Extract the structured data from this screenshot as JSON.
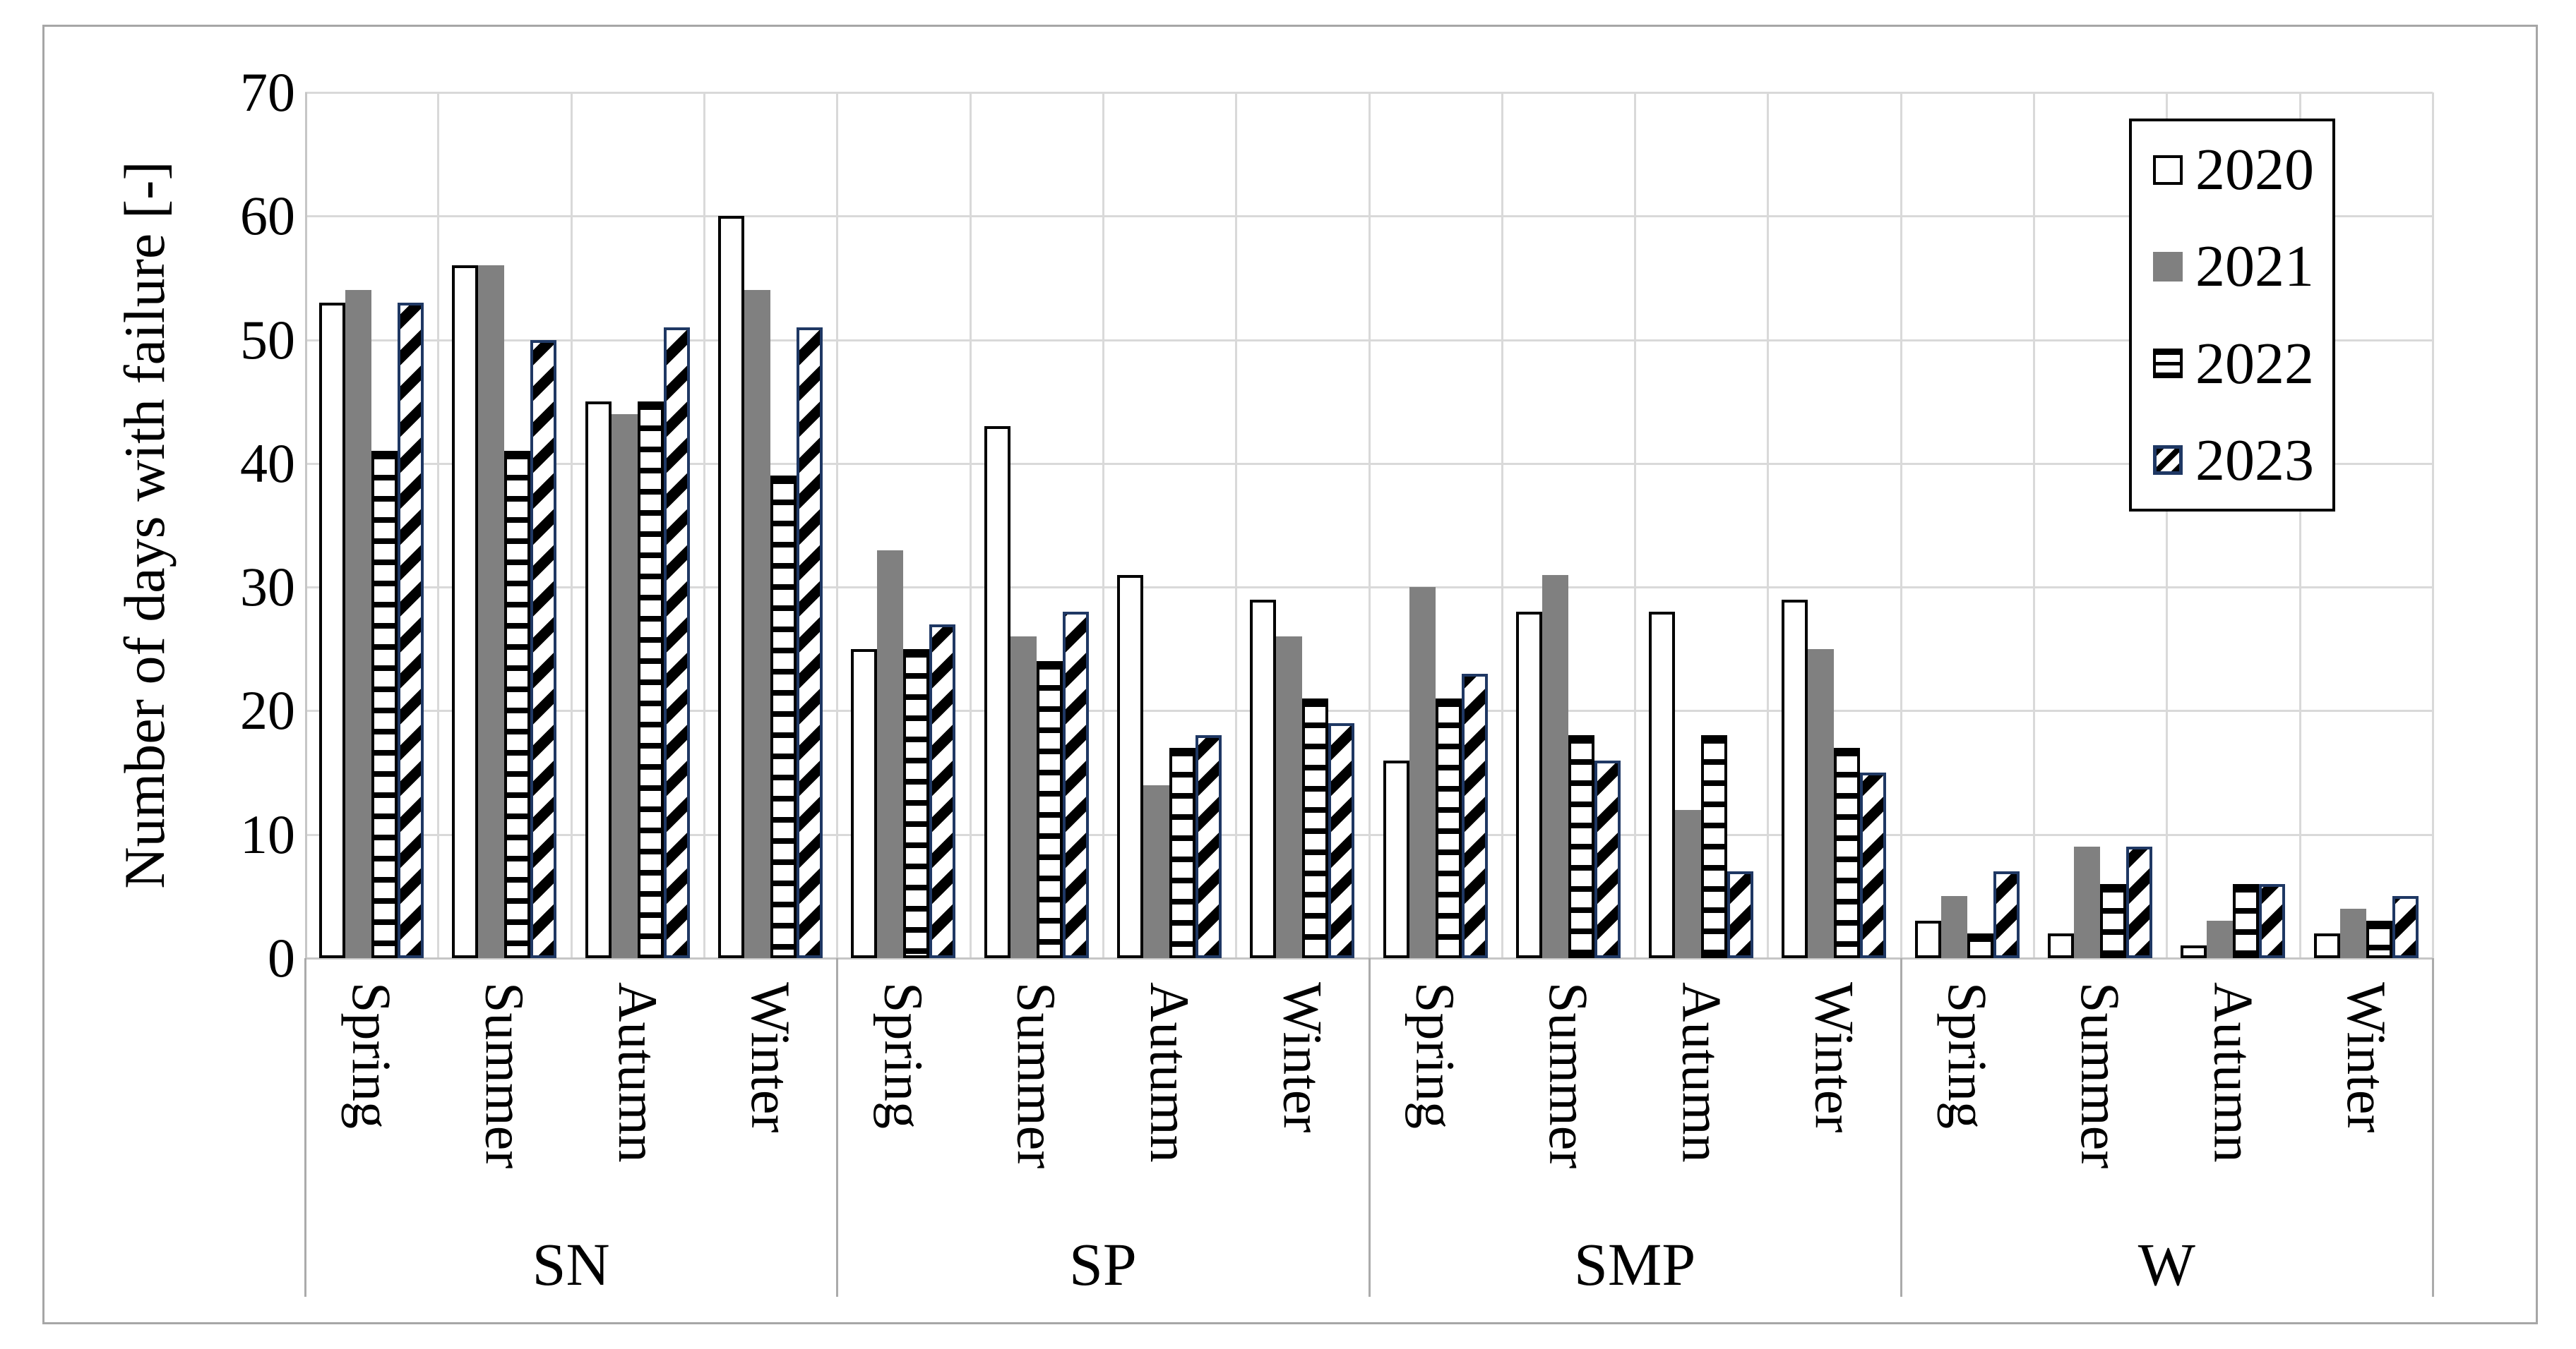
{
  "chart_data": {
    "type": "bar",
    "title": "",
    "ylabel": "Number of days with failure [-]",
    "xlabel": "",
    "ylim": [
      0,
      70
    ],
    "yticks": [
      0,
      10,
      20,
      30,
      40,
      50,
      60,
      70
    ],
    "grid": true,
    "legend_position": "inside-top-right",
    "groups": [
      "SN",
      "SP",
      "SMP",
      "W"
    ],
    "seasons": [
      "Spring",
      "Summer",
      "Autumn",
      "Winter"
    ],
    "categories": [
      "SN-Spring",
      "SN-Summer",
      "SN-Autumn",
      "SN-Winter",
      "SP-Spring",
      "SP-Summer",
      "SP-Autumn",
      "SP-Winter",
      "SMP-Spring",
      "SMP-Summer",
      "SMP-Autumn",
      "SMP-Winter",
      "W-Spring",
      "W-Summer",
      "W-Autumn",
      "W-Winter"
    ],
    "series": [
      {
        "name": "2020",
        "style": "white-black-outline",
        "values": [
          53,
          56,
          45,
          60,
          25,
          43,
          31,
          29,
          16,
          28,
          28,
          29,
          3,
          2,
          1,
          2
        ]
      },
      {
        "name": "2021",
        "style": "solid-gray",
        "values": [
          54,
          56,
          44,
          54,
          33,
          26,
          14,
          26,
          30,
          31,
          12,
          25,
          5,
          9,
          3,
          4
        ]
      },
      {
        "name": "2022",
        "style": "horizontal-stripes",
        "values": [
          41,
          41,
          45,
          39,
          25,
          24,
          17,
          21,
          21,
          18,
          18,
          17,
          2,
          6,
          6,
          3
        ]
      },
      {
        "name": "2023",
        "style": "diagonal-stripes-navy",
        "values": [
          53,
          50,
          51,
          51,
          27,
          28,
          18,
          19,
          23,
          16,
          7,
          15,
          7,
          9,
          6,
          5
        ]
      }
    ],
    "colors": {
      "bar_gray": "#808080",
      "navy_border": "#1f3864",
      "black": "#000000",
      "gridline": "#d9d9d9",
      "axis_line": "#c6c6c6",
      "separator": "#ababab",
      "chart_border": "#a6a6a6",
      "background": "#ffffff"
    }
  }
}
